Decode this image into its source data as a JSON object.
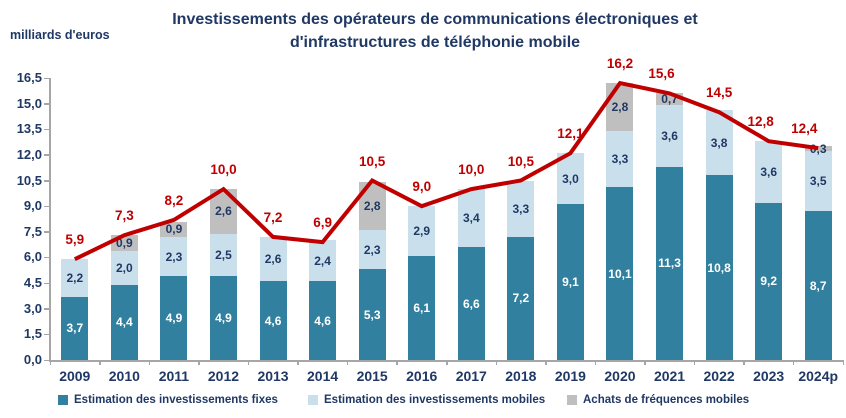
{
  "header": {
    "title_line1": "Investissements des opérateurs de communications électroniques et",
    "title_line2": "d'infrastructures de téléphonie mobile",
    "y_axis_unit": "milliards d'euros"
  },
  "chart_data": {
    "type": "bar",
    "subtype": "stacked-bars-with-total-line",
    "title": "Investissements des opérateurs de communications électroniques et d'infrastructures de téléphonie mobile",
    "ylabel": "milliards d'euros",
    "categories": [
      "2009",
      "2010",
      "2011",
      "2012",
      "2013",
      "2014",
      "2015",
      "2016",
      "2017",
      "2018",
      "2019",
      "2020",
      "2021",
      "2022",
      "2023",
      "2024p"
    ],
    "series": [
      {
        "name": "Estimation des investissements fixes",
        "color": "#31809F",
        "label_color": "#FFFFFF",
        "values": [
          3.7,
          4.4,
          4.9,
          4.9,
          4.6,
          4.6,
          5.3,
          6.1,
          6.6,
          7.2,
          9.1,
          10.1,
          11.3,
          10.8,
          9.2,
          8.7
        ]
      },
      {
        "name": "Estimation des investissements mobiles",
        "color": "#C9E0EC",
        "label_color": "#1F3864",
        "values": [
          2.2,
          2.0,
          2.3,
          2.5,
          2.6,
          2.4,
          2.3,
          2.9,
          3.4,
          3.3,
          3.0,
          3.3,
          3.6,
          3.8,
          3.6,
          3.5
        ]
      },
      {
        "name": "Achats de fréquences mobiles",
        "color": "#BFBFBF",
        "label_color": "#1F3864",
        "values": [
          null,
          0.9,
          0.9,
          2.6,
          null,
          null,
          2.8,
          null,
          null,
          null,
          null,
          2.8,
          0.7,
          null,
          null,
          0.3
        ]
      }
    ],
    "line": {
      "name": "total-investissements",
      "color": "#C00000",
      "values": [
        5.9,
        7.3,
        8.2,
        10.0,
        7.2,
        6.9,
        10.5,
        9.0,
        10.0,
        10.5,
        12.1,
        16.2,
        15.6,
        14.5,
        12.8,
        12.4
      ]
    },
    "ylim": [
      0,
      16.5
    ],
    "ytick_step": 1.5,
    "grid": false,
    "legend_position": "bottom",
    "decimal_separator": ","
  },
  "colors": {
    "accent_red": "#C00000",
    "text_navy": "#1F3864",
    "axis_gray": "#A6A6A6"
  }
}
